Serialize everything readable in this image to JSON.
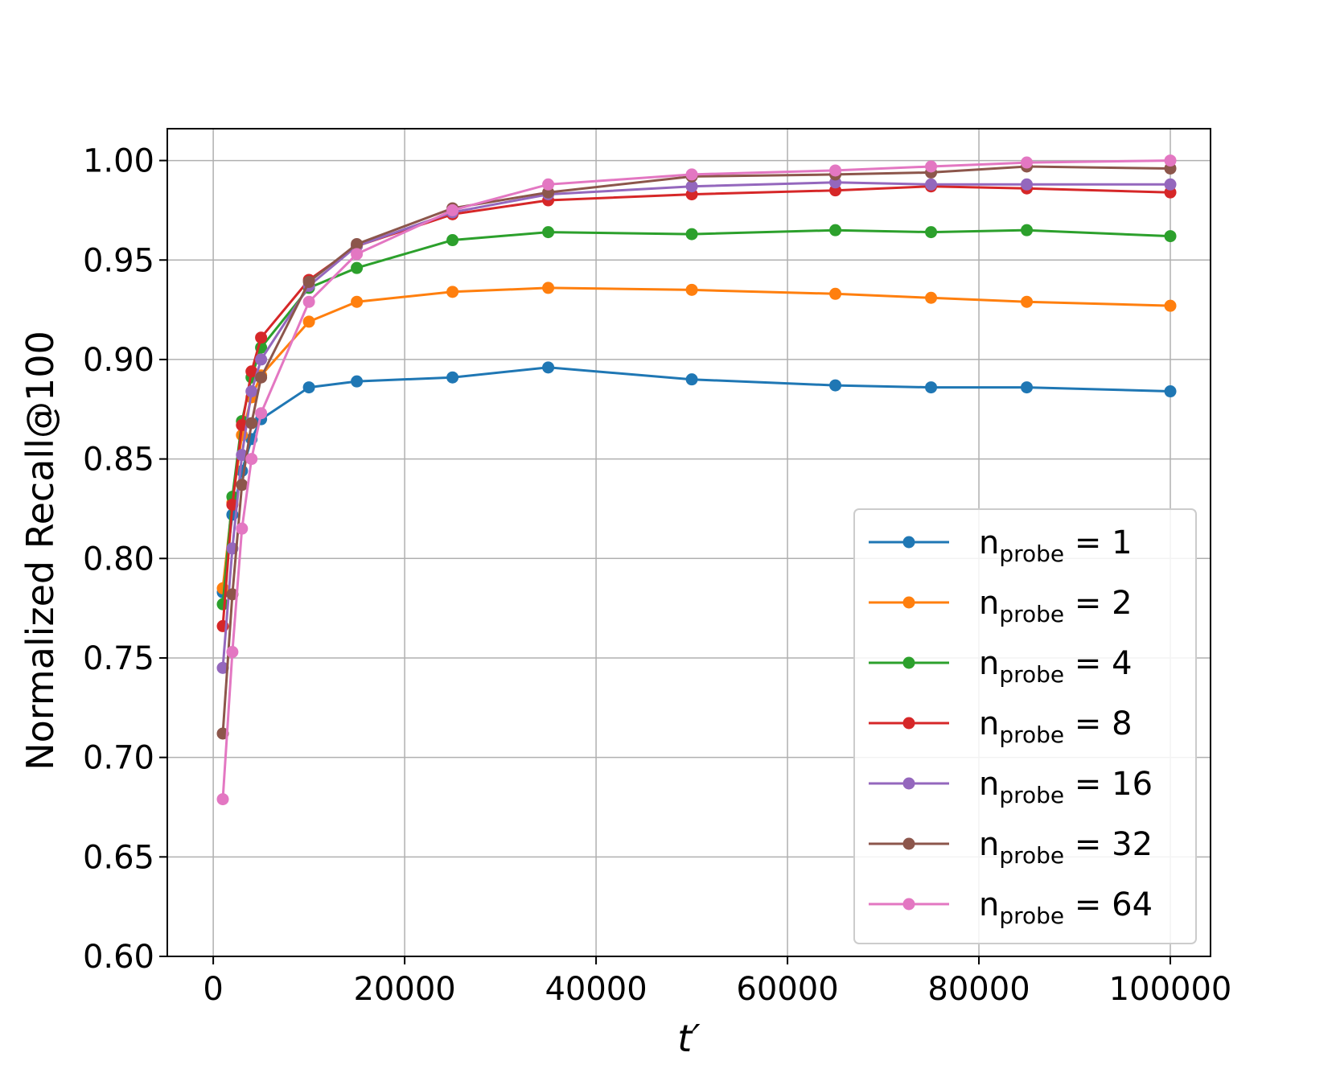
{
  "chart_data": {
    "type": "line",
    "xlabel": "t′",
    "ylabel": "Normalized Recall@100",
    "xlim": [
      -4800,
      104200
    ],
    "ylim": [
      0.6,
      1.016
    ],
    "xticks": [
      0,
      20000,
      40000,
      60000,
      80000,
      100000
    ],
    "xtick_labels": [
      "0",
      "20000",
      "40000",
      "60000",
      "80000",
      "100000"
    ],
    "yticks": [
      0.6,
      0.65,
      0.7,
      0.75,
      0.8,
      0.85,
      0.9,
      0.95,
      1.0
    ],
    "ytick_labels": [
      "0.60",
      "0.65",
      "0.70",
      "0.75",
      "0.80",
      "0.85",
      "0.90",
      "0.95",
      "1.00"
    ],
    "grid": true,
    "legend_position": "lower-right",
    "x": [
      1000,
      2000,
      3000,
      4000,
      5000,
      10000,
      15000,
      25000,
      35000,
      50000,
      65000,
      75000,
      85000,
      100000
    ],
    "series": [
      {
        "name_base": "n",
        "name_sub": "probe",
        "name_rest": " = 1",
        "color": "#1f77b4",
        "values": [
          0.783,
          0.822,
          0.844,
          0.86,
          0.87,
          0.886,
          0.889,
          0.891,
          0.896,
          0.89,
          0.887,
          0.886,
          0.886,
          0.884
        ]
      },
      {
        "name_base": "n",
        "name_sub": "probe",
        "name_rest": " = 2",
        "color": "#ff7f0e",
        "values": [
          0.785,
          0.828,
          0.862,
          0.881,
          0.892,
          0.919,
          0.929,
          0.934,
          0.936,
          0.935,
          0.933,
          0.931,
          0.929,
          0.927
        ]
      },
      {
        "name_base": "n",
        "name_sub": "probe",
        "name_rest": " = 4",
        "color": "#2ca02c",
        "values": [
          0.777,
          0.831,
          0.869,
          0.891,
          0.906,
          0.936,
          0.946,
          0.96,
          0.964,
          0.963,
          0.965,
          0.964,
          0.965,
          0.962
        ]
      },
      {
        "name_base": "n",
        "name_sub": "probe",
        "name_rest": " = 8",
        "color": "#d62728",
        "values": [
          0.766,
          0.827,
          0.867,
          0.894,
          0.911,
          0.94,
          0.957,
          0.973,
          0.98,
          0.983,
          0.985,
          0.987,
          0.986,
          0.984
        ]
      },
      {
        "name_base": "n",
        "name_sub": "probe",
        "name_rest": " = 16",
        "color": "#9467bd",
        "values": [
          0.745,
          0.805,
          0.852,
          0.884,
          0.9,
          0.937,
          0.957,
          0.974,
          0.983,
          0.987,
          0.989,
          0.988,
          0.988,
          0.988
        ]
      },
      {
        "name_base": "n",
        "name_sub": "probe",
        "name_rest": " = 32",
        "color": "#8c564b",
        "values": [
          0.712,
          0.782,
          0.837,
          0.868,
          0.891,
          0.939,
          0.958,
          0.976,
          0.984,
          0.992,
          0.993,
          0.994,
          0.997,
          0.996
        ]
      },
      {
        "name_base": "n",
        "name_sub": "probe",
        "name_rest": " = 64",
        "color": "#e377c2",
        "values": [
          0.679,
          0.753,
          0.815,
          0.85,
          0.873,
          0.929,
          0.953,
          0.975,
          0.988,
          0.993,
          0.995,
          0.997,
          0.999,
          1.0
        ]
      }
    ]
  }
}
